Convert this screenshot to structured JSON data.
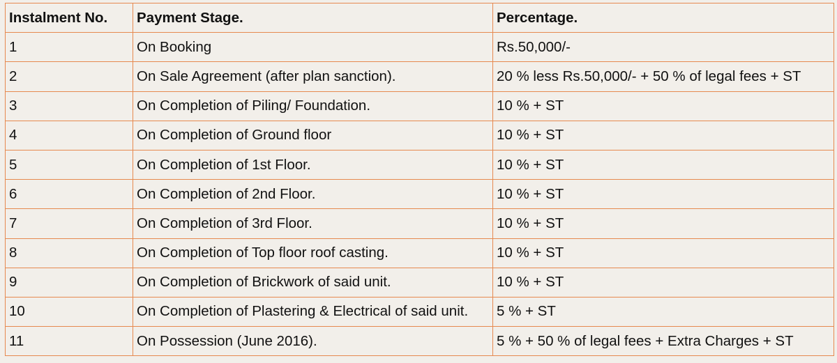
{
  "table": {
    "headers": [
      "Instalment No.",
      "Payment Stage.",
      "Percentage."
    ],
    "rows": [
      [
        "1",
        "On Booking",
        "Rs.50,000/-"
      ],
      [
        "2",
        "On Sale Agreement (after plan sanction).",
        "20 % less Rs.50,000/- + 50 % of legal fees + ST"
      ],
      [
        "3",
        "On Completion of Piling/ Foundation.",
        "10 % + ST"
      ],
      [
        "4",
        "On Completion of Ground floor",
        "10 % + ST"
      ],
      [
        "5",
        "On Completion of 1st Floor.",
        "10 % + ST"
      ],
      [
        "6",
        "On Completion of 2nd Floor.",
        "10 % + ST"
      ],
      [
        "7",
        "On Completion of 3rd Floor.",
        "10 % + ST"
      ],
      [
        "8",
        "On Completion of Top floor roof casting.",
        "10 % + ST"
      ],
      [
        "9",
        "On Completion of Brickwork of said unit.",
        "10 % + ST"
      ],
      [
        "10",
        "On Completion of Plastering & Electrical of said unit.",
        "5 % + ST"
      ],
      [
        "11",
        "On Possession (June 2016).",
        "5 % + 50 % of legal fees + Extra Charges + ST"
      ]
    ]
  },
  "colors": {
    "border": "#e6894f",
    "background": "#f2efea",
    "text": "#111111"
  }
}
